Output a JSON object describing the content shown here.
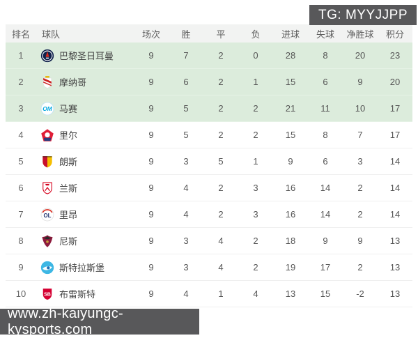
{
  "badges": {
    "tg": "TG: MYYJJPP",
    "url": "www.zh-kaiyungc-kysports.com"
  },
  "theme": {
    "highlight_green": "#dcecdc",
    "header_bg": "#f2f3f2",
    "badge_bg": "#58585a",
    "badge_text": "#ffffff",
    "row_border": "#efefef"
  },
  "table": {
    "columns": [
      "排名",
      "球队",
      "场次",
      "胜",
      "平",
      "负",
      "进球",
      "失球",
      "净胜球",
      "积分"
    ],
    "rows": [
      {
        "rank": "1",
        "team": "巴黎圣日耳曼",
        "logo": "psg",
        "colors": [
          "#10214b",
          "#da291c"
        ],
        "stats": [
          "9",
          "7",
          "2",
          "0",
          "28",
          "8",
          "20",
          "23"
        ],
        "highlight": true
      },
      {
        "rank": "2",
        "team": "摩纳哥",
        "logo": "monaco",
        "colors": [
          "#cc2222",
          "#e8b90f"
        ],
        "stats": [
          "9",
          "6",
          "2",
          "1",
          "15",
          "6",
          "9",
          "20"
        ],
        "highlight": true
      },
      {
        "rank": "3",
        "team": "马赛",
        "logo": "marseille",
        "colors": [
          "#00a7e1",
          "#bfe3f7"
        ],
        "stats": [
          "9",
          "5",
          "2",
          "2",
          "21",
          "11",
          "10",
          "17"
        ],
        "highlight": true
      },
      {
        "rank": "4",
        "team": "里尔",
        "logo": "lille",
        "colors": [
          "#e01e37",
          "#2a3c7e"
        ],
        "stats": [
          "9",
          "5",
          "2",
          "2",
          "15",
          "8",
          "7",
          "17"
        ],
        "highlight": false
      },
      {
        "rank": "5",
        "team": "朗斯",
        "logo": "lens",
        "colors": [
          "#c8102e",
          "#f6be00"
        ],
        "stats": [
          "9",
          "3",
          "5",
          "1",
          "9",
          "6",
          "3",
          "14"
        ],
        "highlight": false
      },
      {
        "rank": "6",
        "team": "兰斯",
        "logo": "reims",
        "colors": [
          "#d6001c",
          "#ffffff"
        ],
        "stats": [
          "9",
          "4",
          "2",
          "3",
          "16",
          "14",
          "2",
          "14"
        ],
        "highlight": false
      },
      {
        "rank": "7",
        "team": "里昂",
        "logo": "lyon",
        "colors": [
          "#1b2f6e",
          "#da291c"
        ],
        "stats": [
          "9",
          "4",
          "2",
          "3",
          "16",
          "14",
          "2",
          "14"
        ],
        "highlight": false
      },
      {
        "rank": "8",
        "team": "尼斯",
        "logo": "nice",
        "colors": [
          "#8d1b3d",
          "#2b2b2b"
        ],
        "stats": [
          "9",
          "3",
          "4",
          "2",
          "18",
          "9",
          "9",
          "13"
        ],
        "highlight": false
      },
      {
        "rank": "9",
        "team": "斯特拉斯堡",
        "logo": "strasbourg",
        "colors": [
          "#3db7e4",
          "#1f6fb5"
        ],
        "stats": [
          "9",
          "3",
          "4",
          "2",
          "19",
          "17",
          "2",
          "13"
        ],
        "highlight": false
      },
      {
        "rank": "10",
        "team": "布雷斯特",
        "logo": "brest",
        "colors": [
          "#d50032",
          "#ffffff"
        ],
        "stats": [
          "9",
          "4",
          "1",
          "4",
          "13",
          "15",
          "-2",
          "13"
        ],
        "highlight": false
      }
    ]
  }
}
